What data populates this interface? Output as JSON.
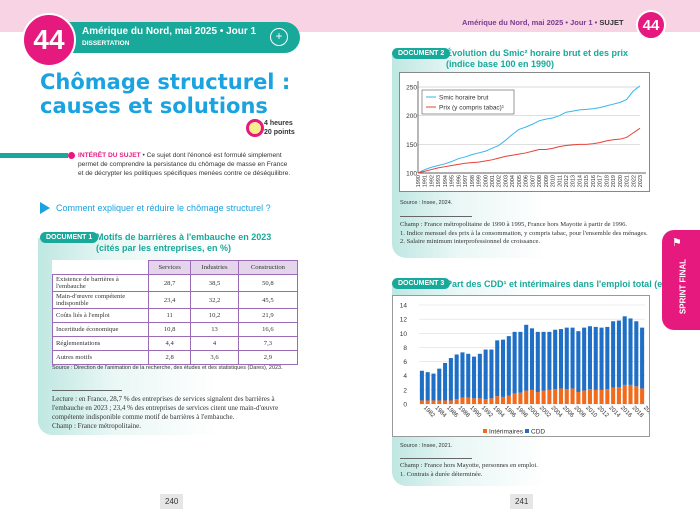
{
  "header_left": {
    "number": "44",
    "title": "Amérique du Nord, mai 2025 • Jour 1",
    "subtitle": "DISSERTATION",
    "icon": "compass-icon"
  },
  "header_right": {
    "text": "Amérique du Nord, mai 2025 • Jour 1 • ",
    "bold": "SUJET",
    "number": "44"
  },
  "main_title": [
    "Chômage structurel :",
    "causes et solutions"
  ],
  "duration": {
    "hours": "4 heures",
    "points": "20 points"
  },
  "interet": {
    "label": "INTÉRÊT DU SUJET",
    "text": " • Ce sujet dont l'énoncé est formulé simplement permet de comprendre la persistance du chômage de masse en France et de décrypter les politiques spécifiques menées contre ce déséquilibre."
  },
  "question": "Comment expliquer et réduire le chômage structurel ?",
  "doc1": {
    "badge": "DOCUMENT 1",
    "title": [
      "Motifs de barrières à l'embauche en 2023",
      "(cités par les entreprises, en %)"
    ],
    "columns": [
      "",
      "Services",
      "Industries",
      "Construction"
    ],
    "rows": [
      [
        "Existence de barrières à l'embauche",
        "28,7",
        "38,5",
        "50,8"
      ],
      [
        "Main-d'œuvre compétente indisponible",
        "23,4",
        "32,2",
        "45,5"
      ],
      [
        "Coûts liés à l'emploi",
        "11",
        "10,2",
        "21,9"
      ],
      [
        "Incertitude économique",
        "10,8",
        "13",
        "16,6"
      ],
      [
        "Réglementations",
        "4,4",
        "4",
        "7,3"
      ],
      [
        "Autres motifs",
        "2,8",
        "3,6",
        "2,9"
      ]
    ],
    "source": "Source : Direction de l'animation de la recherche, des études et des statistiques (Dares), 2023.",
    "notes": [
      "Lecture : en France, 28,7 % des entreprises de services signalent des barrières à l'embauche en 2023 ; 23,4 % des entreprises de services citent une main-d'œuvre compétente indisponible comme motif de barrières à l'embauche.",
      "Champ : France métropolitaine."
    ]
  },
  "doc2": {
    "badge": "DOCUMENT 2",
    "title": [
      "Évolution du Smic² horaire brut et des prix",
      "(indice base 100 en 1990)"
    ],
    "source": "Source : Insee, 2024.",
    "notes": [
      "Champ : France métropolitaine de 1990 à 1995, France hors Mayotte à partir de 1996.",
      "1. Indice mensuel des prix à la consommation, y compris tabac, pour l'ensemble des ménages.",
      "2. Salaire minimum interprofessionnel de croissance."
    ]
  },
  "doc3": {
    "badge": "DOCUMENT 3",
    "title": "Part des CDD¹ et intérimaires dans l'emploi total (en %)",
    "source": "Source : Insee, 2021.",
    "notes": [
      "Champ : France hors Mayotte, personnes en emploi.",
      "1. Contrats à durée déterminée."
    ]
  },
  "side_tab": "SPRINT FINAL",
  "page_numbers": [
    "240",
    "241"
  ],
  "chart_data": [
    {
      "type": "line",
      "x": [
        1990,
        1991,
        1992,
        1993,
        1994,
        1995,
        1996,
        1997,
        1998,
        1999,
        2000,
        2001,
        2002,
        2003,
        2004,
        2005,
        2006,
        2007,
        2008,
        2009,
        2010,
        2011,
        2012,
        2013,
        2014,
        2015,
        2016,
        2017,
        2018,
        2019,
        2020,
        2021,
        2022,
        2023
      ],
      "series": [
        {
          "name": "Smic horaire brut",
          "color": "#38b6ea",
          "values": [
            100,
            106,
            110,
            113,
            116,
            120,
            125,
            128,
            132,
            135,
            138,
            143,
            148,
            157,
            167,
            176,
            180,
            185,
            191,
            194,
            196,
            200,
            206,
            208,
            210,
            211,
            212,
            214,
            217,
            220,
            223,
            228,
            243,
            252
          ]
        },
        {
          "name": "Prix (y compris tabac)¹",
          "color": "#e8403a",
          "values": [
            100,
            103,
            106,
            109,
            111,
            113,
            115,
            117,
            118,
            119,
            121,
            123,
            126,
            129,
            131,
            133,
            135,
            138,
            141,
            141,
            143,
            146,
            148,
            149,
            150,
            150,
            151,
            153,
            156,
            158,
            159,
            162,
            170,
            178
          ]
        }
      ],
      "yticks": [
        100,
        150,
        200,
        250
      ],
      "ylim": [
        100,
        260
      ],
      "grid": true,
      "legend": "top-left"
    },
    {
      "type": "bar",
      "stacked": true,
      "categories": [
        1982,
        1983,
        1984,
        1985,
        1986,
        1987,
        1988,
        1989,
        1990,
        1991,
        1992,
        1993,
        1994,
        1995,
        1996,
        1997,
        1998,
        1999,
        2000,
        2001,
        2002,
        2003,
        2004,
        2005,
        2006,
        2007,
        2008,
        2009,
        2010,
        2011,
        2012,
        2013,
        2014,
        2015,
        2016,
        2017,
        2018,
        2019,
        2020
      ],
      "series": [
        {
          "name": "Intérimaires",
          "color": "#f26b1d",
          "values": [
            0.5,
            0.5,
            0.5,
            0.5,
            0.5,
            0.5,
            0.7,
            0.9,
            0.9,
            0.8,
            0.8,
            0.7,
            0.8,
            1.1,
            1.0,
            1.2,
            1.5,
            1.6,
            1.9,
            2.0,
            1.7,
            1.9,
            2.0,
            2.1,
            2.2,
            2.1,
            2.2,
            1.7,
            1.9,
            2.1,
            2.0,
            2.0,
            2.1,
            2.3,
            2.4,
            2.7,
            2.7,
            2.5,
            2.2
          ]
        },
        {
          "name": "CDD",
          "color": "#1f6fc6",
          "values": [
            4.2,
            4.0,
            3.8,
            4.5,
            5.3,
            6.0,
            6.3,
            6.4,
            6.2,
            5.9,
            6.3,
            7.0,
            6.9,
            7.9,
            8.1,
            8.4,
            8.7,
            8.6,
            9.3,
            8.7,
            8.5,
            8.3,
            8.2,
            8.4,
            8.4,
            8.7,
            8.6,
            8.6,
            8.9,
            8.9,
            8.9,
            8.8,
            8.8,
            9.4,
            9.4,
            9.7,
            9.4,
            9.2,
            8.6
          ]
        }
      ],
      "yticks": [
        0,
        2,
        4,
        6,
        8,
        10,
        12,
        14
      ],
      "ylim": [
        0,
        14
      ],
      "xtick_labels_every": 2,
      "grid": true,
      "legend": "bottom"
    }
  ]
}
